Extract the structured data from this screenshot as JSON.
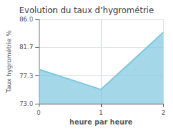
{
  "chart_data": {
    "type": "area",
    "title": "Evolution du taux d’hygrométrie",
    "x_label": "heure par heure",
    "y_label": "Taux hygrométrie %",
    "x": [
      0,
      1,
      2
    ],
    "values": [
      78.3,
      75.2,
      84.0
    ],
    "color": "#7dc8e0",
    "xlim": [
      0,
      2
    ],
    "xticks": [
      0,
      1,
      2
    ],
    "ylim": [
      73.0,
      86.0
    ],
    "yticks": [
      {
        "value": 73.0,
        "label": "73.0"
      },
      77.3,
      81.7,
      {
        "value": 86.0,
        "label": "86.0"
      }
    ],
    "grid": true
  }
}
